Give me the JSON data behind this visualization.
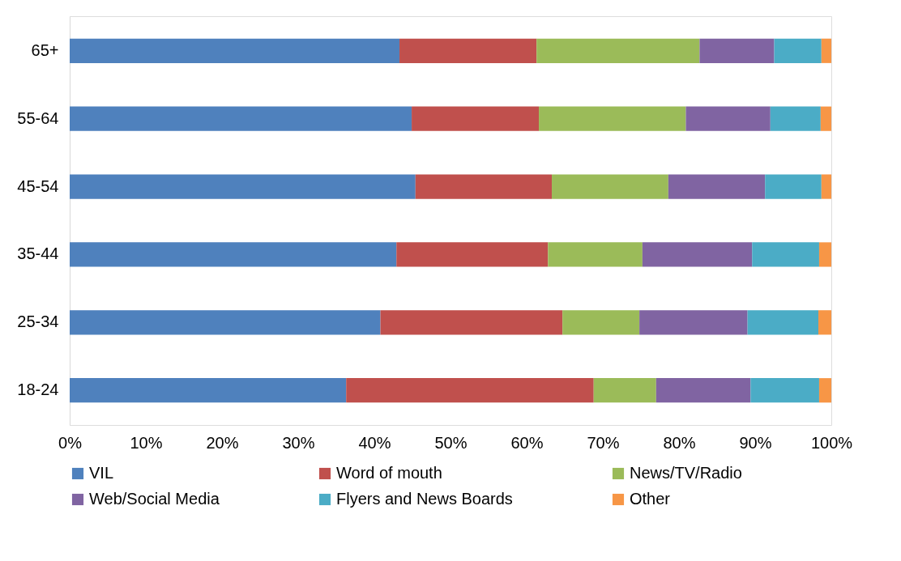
{
  "chart_data": {
    "type": "bar",
    "orientation": "horizontal",
    "stacked": true,
    "categories": [
      "65+",
      "55-64",
      "45-54",
      "35-44",
      "25-34",
      "18-24"
    ],
    "series": [
      {
        "name": "VIL",
        "color": "#4f81bd",
        "values": [
          43.3,
          44.9,
          45.4,
          42.9,
          40.8,
          36.3
        ]
      },
      {
        "name": "Word of mouth",
        "color": "#c0504d",
        "values": [
          18.0,
          16.7,
          17.9,
          19.9,
          23.9,
          32.5
        ]
      },
      {
        "name": "News/TV/Radio",
        "color": "#9bbb59",
        "values": [
          21.4,
          19.3,
          15.3,
          12.4,
          10.1,
          8.2
        ]
      },
      {
        "name": "Web/Social Media",
        "color": "#8064a2",
        "values": [
          9.8,
          11.1,
          12.7,
          14.4,
          14.2,
          12.4
        ]
      },
      {
        "name": "Flyers and News Boards",
        "color": "#4bacc6",
        "values": [
          6.2,
          6.6,
          7.4,
          8.8,
          9.3,
          9.0
        ]
      },
      {
        "name": "Other",
        "color": "#f79646",
        "values": [
          1.3,
          1.4,
          1.3,
          1.6,
          1.7,
          1.6
        ]
      }
    ],
    "xlim": [
      0,
      100
    ],
    "xticks": [
      {
        "value": 0,
        "label": "0%"
      },
      {
        "value": 10,
        "label": "10%"
      },
      {
        "value": 20,
        "label": "20%"
      },
      {
        "value": 30,
        "label": "30%"
      },
      {
        "value": 40,
        "label": "40%"
      },
      {
        "value": 50,
        "label": "50%"
      },
      {
        "value": 60,
        "label": "60%"
      },
      {
        "value": 70,
        "label": "70%"
      },
      {
        "value": 80,
        "label": "80%"
      },
      {
        "value": 90,
        "label": "90%"
      },
      {
        "value": 100,
        "label": "100%"
      }
    ],
    "grid": false,
    "legend": "bottom"
  }
}
